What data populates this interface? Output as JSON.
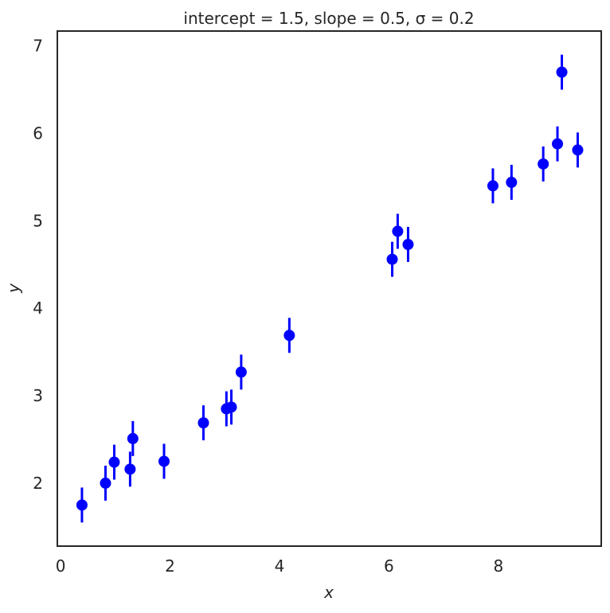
{
  "chart_data": {
    "type": "errorbar",
    "title": "intercept = 1.5, slope = 0.5,  σ = 0.2",
    "x_label": "x",
    "y_label": "y",
    "x": [
      0.39,
      0.82,
      0.98,
      1.27,
      1.32,
      1.89,
      2.61,
      3.03,
      3.12,
      3.3,
      4.18,
      6.06,
      6.16,
      6.35,
      7.9,
      8.24,
      8.82,
      9.08,
      9.16,
      9.45
    ],
    "series": [
      {
        "name": "data",
        "color": "#0000ff",
        "values": [
          1.75,
          2.0,
          2.24,
          2.16,
          2.51,
          2.25,
          2.69,
          2.85,
          2.87,
          3.27,
          3.69,
          4.56,
          4.88,
          4.73,
          5.4,
          5.44,
          5.65,
          5.88,
          6.7,
          5.81
        ],
        "errors": [
          0.2,
          0.2,
          0.2,
          0.2,
          0.2,
          0.2,
          0.2,
          0.2,
          0.2,
          0.2,
          0.2,
          0.2,
          0.2,
          0.2,
          0.2,
          0.2,
          0.2,
          0.2,
          0.2,
          0.2
        ]
      }
    ],
    "xlim": [
      -0.06,
      9.88
    ],
    "ylim": [
      1.28,
      7.17
    ],
    "xticks": [
      0,
      2,
      4,
      6,
      8
    ],
    "yticks": [
      2,
      3,
      4,
      5,
      6,
      7
    ],
    "grid": false
  }
}
